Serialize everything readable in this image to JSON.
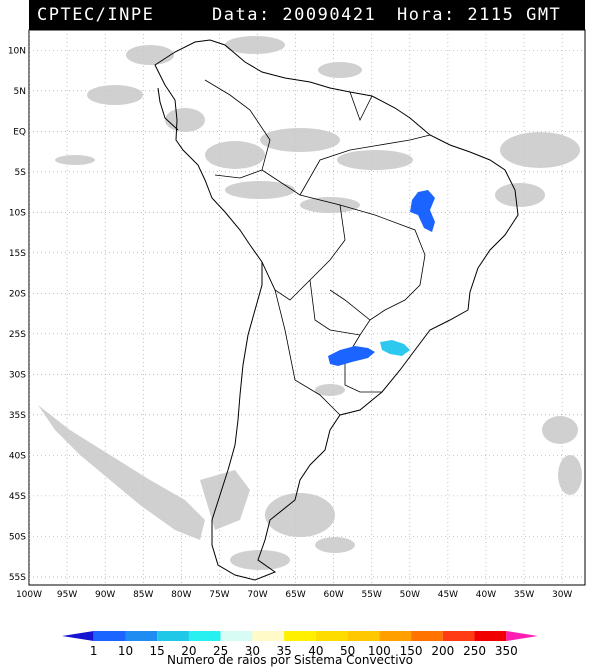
{
  "header": {
    "agency": "CPTEC/INPE",
    "date_text": "Data: 20090421",
    "time_text": "Hora: 2115 GMT"
  },
  "map": {
    "lon_ticks": [
      "100W",
      "95W",
      "90W",
      "85W",
      "80W",
      "75W",
      "70W",
      "65W",
      "60W",
      "55W",
      "50W",
      "45W",
      "40W",
      "35W",
      "30W"
    ],
    "lat_ticks": [
      "10N",
      "5N",
      "EQ",
      "5S",
      "10S",
      "15S",
      "20S",
      "25S",
      "30S",
      "35S",
      "40S",
      "45S",
      "50S",
      "55S"
    ],
    "lon_range": [
      -100,
      -27
    ],
    "lat_range": [
      12.5,
      -56
    ],
    "grid": "dotted",
    "colors": {
      "land_outline": "#000000",
      "cloud_gray": "#c8c8c8",
      "grid": "#9a9a9a"
    },
    "convective_systems": [
      {
        "name": "north-east-brazil",
        "lon": -43.5,
        "lat": -9.5,
        "color": "#1c64ff"
      },
      {
        "name": "south-paraguay-argentina",
        "lon": -56.0,
        "lat": -27.8,
        "color": "#1c64ff"
      },
      {
        "name": "south-brazil",
        "lon": -51.5,
        "lat": -27.0,
        "color": "#2dc8f0"
      }
    ]
  },
  "legend": {
    "values": [
      "1",
      "10",
      "15",
      "20",
      "25",
      "30",
      "35",
      "40",
      "50",
      "100",
      "150",
      "200",
      "250",
      "350"
    ],
    "colors": [
      "#1414d2",
      "#1c64ff",
      "#1e8cf0",
      "#1ec8e6",
      "#28f0f0",
      "#d7fcf4",
      "#fffac8",
      "#fff000",
      "#ffdc00",
      "#ffc800",
      "#ffa000",
      "#ff7300",
      "#ff3c14",
      "#f00000",
      "#ff1eb4"
    ],
    "caption": "Numero de raios por Sistema Convectivo"
  }
}
